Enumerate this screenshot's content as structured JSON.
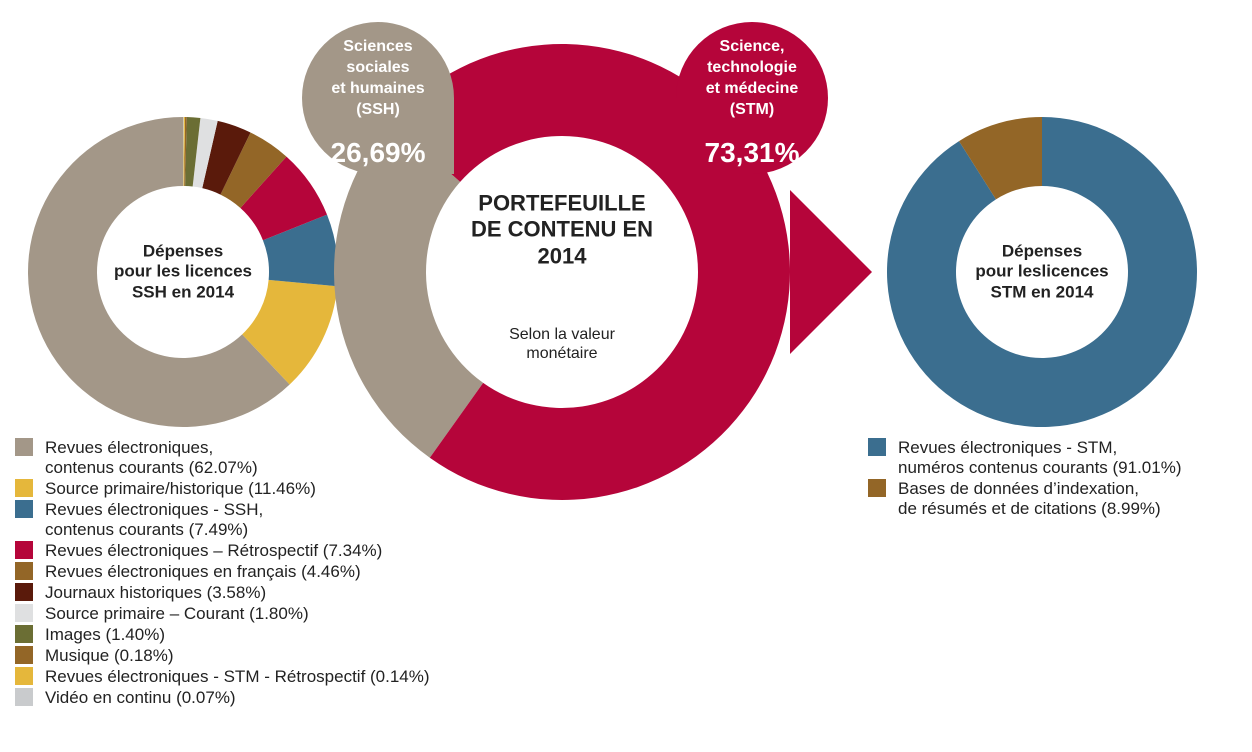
{
  "chart_data": [
    {
      "type": "donut",
      "title": "Dépenses\npour les licences\nSSH en 2014",
      "categories": [
        "Revues électroniques,\ncontenus courants (62.07%)",
        "Source primaire/historique (11.46%)",
        "Revues électroniques - SSH,\ncontenus courants (7.49%)",
        "Revues électroniques – Rétrospectif (7.34%)",
        "Revues électroniques en français (4.46%)",
        "Journaux historiques (3.58%)",
        "Source primaire – Courant (1.80%)",
        "Images (1.40%)",
        "Musique (0.18%)",
        "Revues électroniques - STM - Rétrospectif (0.14%)",
        "Vidéo en continu (0.07%)"
      ],
      "values": [
        62.07,
        11.46,
        7.49,
        7.34,
        4.46,
        3.58,
        1.8,
        1.4,
        0.18,
        0.14,
        0.07
      ],
      "colors": [
        "#a39788",
        "#e5b73b",
        "#3b6e8f",
        "#b5053a",
        "#936627",
        "#5a1a0b",
        "#dfe0e1",
        "#6b6e34",
        "#936627",
        "#e5b73b",
        "#c9cbcd"
      ]
    },
    {
      "type": "donut",
      "title": "PORTEFEUILLE\nDE CONTENU EN\n2014",
      "subtitle": "Selon la valeur\nmonétaire",
      "categories": [
        "Sciences\nsociales\net humaines\n(SSH)",
        "Science,\ntechnologie\net médecine\n(STM)"
      ],
      "values": [
        26.69,
        73.31
      ],
      "value_labels": [
        "26,69%",
        "73,31%"
      ],
      "colors": [
        "#a39788",
        "#b5053a"
      ]
    },
    {
      "type": "donut",
      "title": "Dépenses\npour leslicences\nSTM en 2014",
      "categories": [
        "Revues électroniques - STM,\nnuméros contenus courants (91.01%)",
        "Bases de données d’indexation,\nde résumés et de citations (8.99%)"
      ],
      "values": [
        91.01,
        8.99
      ],
      "colors": [
        "#3b6e8f",
        "#936627"
      ]
    }
  ]
}
